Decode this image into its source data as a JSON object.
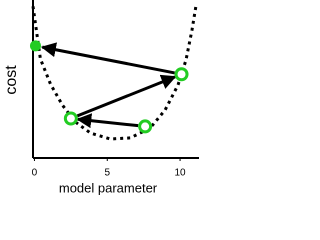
{
  "chart_data": {
    "type": "line",
    "x_label": "model parameter",
    "y_label": "cost",
    "xlim": [
      -0.1,
      11.3
    ],
    "ylim": [
      0,
      10
    ],
    "xticks": [
      0,
      5,
      10
    ],
    "curve": {
      "color": "#000000",
      "x": [
        -0.1,
        0.41,
        1.1,
        1.92,
        2.81,
        3.84,
        5.21,
        6.58,
        7.95,
        8.97,
        9.86,
        10.41,
        10.82,
        11.1
      ],
      "values": [
        9.6,
        6.27,
        4.68,
        3.35,
        2.28,
        1.58,
        1.2,
        1.27,
        1.9,
        3.04,
        4.62,
        6.2,
        8.1,
        9.68
      ]
    },
    "steps": {
      "color": "#22cc22",
      "x": [
        7.6,
        2.5,
        10.1,
        0.07
      ],
      "values": [
        2.0,
        2.5,
        5.3,
        7.1
      ]
    }
  }
}
